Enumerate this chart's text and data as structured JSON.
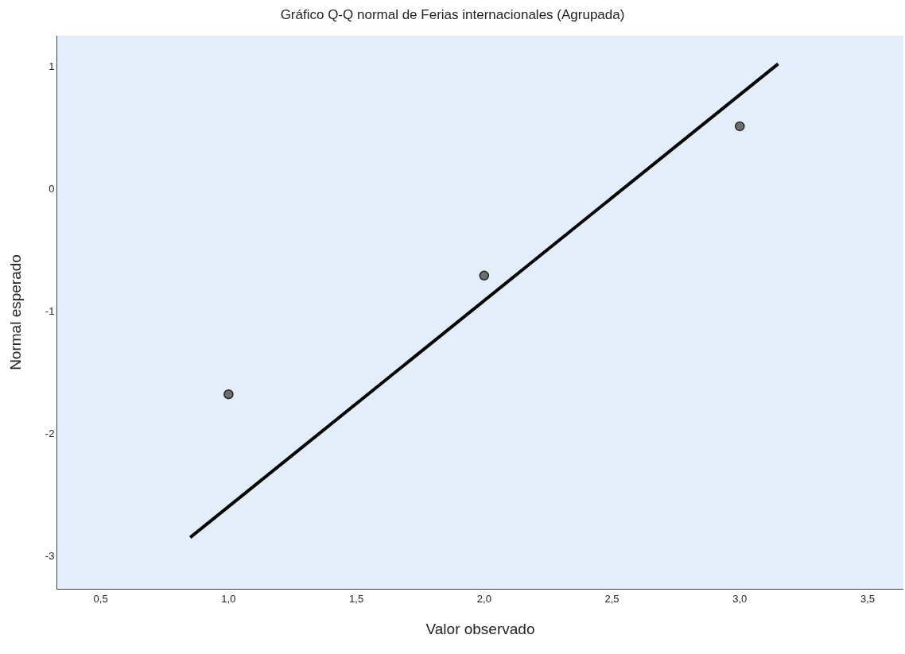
{
  "chart_data": {
    "type": "scatter",
    "title": "Gráfico Q-Q normal de Ferias internacionales (Agrupada)",
    "xlabel": "Valor observado",
    "ylabel": "Normal esperado",
    "series": [
      {
        "color": "#6e6e6e",
        "marker": "circle",
        "x": [
          1.0,
          2.0,
          3.0
        ],
        "values": [
          -1.68,
          -0.71,
          0.51
        ]
      },
      {
        "type": "line",
        "color": "#000000",
        "line_style": "solid",
        "x": [
          0.85,
          3.15
        ],
        "values": [
          -2.85,
          1.02
        ]
      }
    ],
    "xlim": [
      0.33,
      3.64
    ],
    "ylim": [
      -3.27,
      1.25
    ],
    "xticks": [
      {
        "value": 0.5,
        "label": "0,5"
      },
      {
        "value": 1.0,
        "label": "1,0"
      },
      {
        "value": 1.5,
        "label": "1,5"
      },
      {
        "value": 2.0,
        "label": "2,0"
      },
      {
        "value": 2.5,
        "label": "2,5"
      },
      {
        "value": 3.0,
        "label": "3,0"
      },
      {
        "value": 3.5,
        "label": "3,5"
      }
    ],
    "yticks": [
      1,
      0,
      -1,
      -2,
      -3
    ],
    "grid": false
  }
}
